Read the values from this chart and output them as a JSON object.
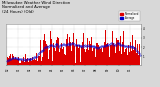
{
  "title": "Milwaukee Weather Wind Direction\nNormalized and Average\n(24 Hours) (Old)",
  "bg_color": "#d8d8d8",
  "plot_bg_color": "#ffffff",
  "grid_color": "#aaaaaa",
  "bar_color": "#dd0000",
  "avg_color": "#0000cc",
  "ylim": [
    0,
    4.5
  ],
  "yticks": [
    1,
    2,
    3,
    4
  ],
  "num_points": 144,
  "title_fontsize": 2.8,
  "tick_fontsize": 2.0,
  "legend_labels": [
    "Normalized",
    "Average"
  ],
  "legend_colors": [
    "#dd0000",
    "#0000cc"
  ]
}
